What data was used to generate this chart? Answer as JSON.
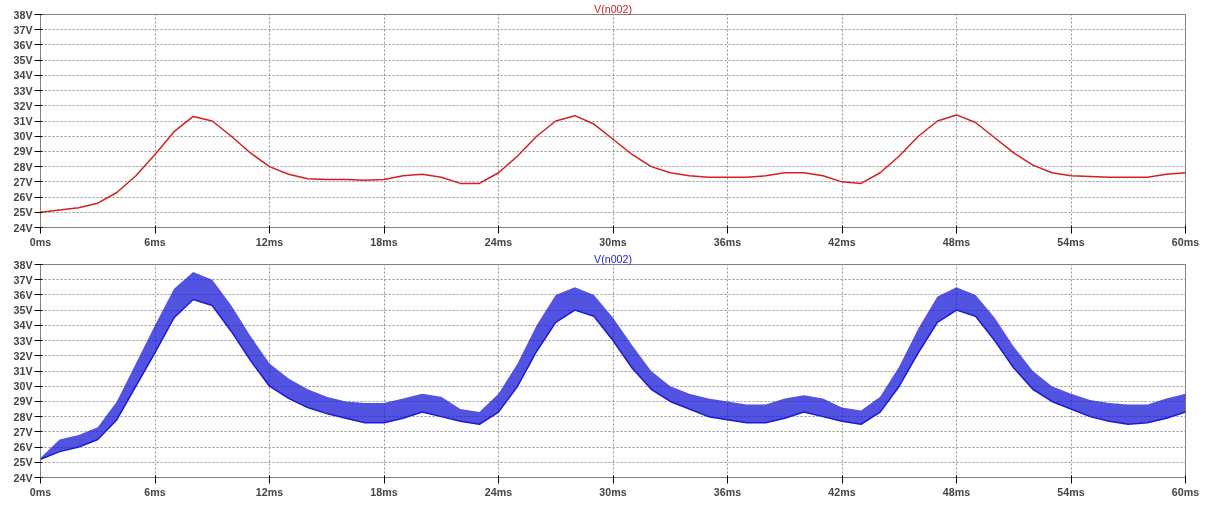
{
  "chart_data": [
    {
      "type": "line",
      "x": [
        0,
        1,
        2,
        3,
        4,
        5,
        6,
        7,
        8,
        9,
        10,
        11,
        12,
        13,
        14,
        15,
        16,
        17,
        18,
        19,
        20,
        21,
        22,
        23,
        24,
        25,
        26,
        27,
        28,
        29,
        30,
        31,
        32,
        33,
        34,
        35,
        36,
        37,
        38,
        39,
        40,
        41,
        42,
        43,
        44,
        45,
        46,
        47,
        48,
        49,
        50,
        51,
        52,
        53,
        54,
        55,
        56,
        57,
        58,
        59,
        60
      ],
      "series": [
        {
          "name": "V(n002)",
          "color": "#d42020",
          "values": [
            25.0,
            25.15,
            25.3,
            25.6,
            26.3,
            27.4,
            28.8,
            30.3,
            31.3,
            31.0,
            30.0,
            28.9,
            28.0,
            27.5,
            27.2,
            27.15,
            27.15,
            27.1,
            27.15,
            27.4,
            27.5,
            27.3,
            26.9,
            26.9,
            27.6,
            28.7,
            30.0,
            31.0,
            31.35,
            30.8,
            29.8,
            28.8,
            28.0,
            27.6,
            27.4,
            27.3,
            27.3,
            27.3,
            27.4,
            27.6,
            27.6,
            27.4,
            27.0,
            26.9,
            27.6,
            28.7,
            30.0,
            31.0,
            31.4,
            30.9,
            29.9,
            28.9,
            28.1,
            27.6,
            27.4,
            27.35,
            27.3,
            27.3,
            27.3,
            27.5,
            27.6
          ]
        }
      ],
      "xlim": [
        0,
        60
      ],
      "ylim": [
        24,
        38
      ],
      "xticks": [
        {
          "value": 0,
          "label": "0ms"
        },
        {
          "value": 6,
          "label": "6ms"
        },
        {
          "value": 12,
          "label": "12ms"
        },
        {
          "value": 18,
          "label": "18ms"
        },
        {
          "value": 24,
          "label": "24ms"
        },
        {
          "value": 30,
          "label": "30ms"
        },
        {
          "value": 36,
          "label": "36ms"
        },
        {
          "value": 42,
          "label": "42ms"
        },
        {
          "value": 48,
          "label": "48ms"
        },
        {
          "value": 54,
          "label": "54ms"
        },
        {
          "value": 60,
          "label": "60ms"
        }
      ],
      "yticks": [
        {
          "value": 24,
          "label": "24V"
        },
        {
          "value": 25,
          "label": "25V"
        },
        {
          "value": 26,
          "label": "26V"
        },
        {
          "value": 27,
          "label": "27V"
        },
        {
          "value": 28,
          "label": "28V"
        },
        {
          "value": 29,
          "label": "29V"
        },
        {
          "value": 30,
          "label": "30V"
        },
        {
          "value": 31,
          "label": "31V"
        },
        {
          "value": 32,
          "label": "32V"
        },
        {
          "value": 33,
          "label": "33V"
        },
        {
          "value": 34,
          "label": "34V"
        },
        {
          "value": 35,
          "label": "35V"
        },
        {
          "value": 36,
          "label": "36V"
        },
        {
          "value": 37,
          "label": "37V"
        },
        {
          "value": 38,
          "label": "38V"
        }
      ],
      "grid": true,
      "line_style": "solid"
    },
    {
      "type": "line",
      "x": [
        0,
        1,
        2,
        3,
        4,
        5,
        6,
        7,
        8,
        9,
        10,
        11,
        12,
        13,
        14,
        15,
        16,
        17,
        18,
        19,
        20,
        21,
        22,
        23,
        24,
        25,
        26,
        27,
        28,
        29,
        30,
        31,
        32,
        33,
        34,
        35,
        36,
        37,
        38,
        39,
        40,
        41,
        42,
        43,
        44,
        45,
        46,
        47,
        48,
        49,
        50,
        51,
        52,
        53,
        54,
        55,
        56,
        57,
        58,
        59,
        60
      ],
      "series": [
        {
          "name": "V(n002)",
          "color": "#1a1ad8",
          "values": [
            25.2,
            25.7,
            26.0,
            26.5,
            27.8,
            30.0,
            32.2,
            34.5,
            35.7,
            35.3,
            33.6,
            31.7,
            30.0,
            29.2,
            28.6,
            28.2,
            27.9,
            27.6,
            27.6,
            27.9,
            28.3,
            28.0,
            27.7,
            27.5,
            28.3,
            30.0,
            32.3,
            34.2,
            35.0,
            34.6,
            33.0,
            31.2,
            29.8,
            29.0,
            28.5,
            28.0,
            27.8,
            27.6,
            27.6,
            27.9,
            28.3,
            28.0,
            27.7,
            27.5,
            28.3,
            30.0,
            32.2,
            34.2,
            35.0,
            34.6,
            33.0,
            31.2,
            29.8,
            29.0,
            28.5,
            28.0,
            27.7,
            27.5,
            27.6,
            27.9,
            28.3
          ],
          "lower": [
            25.2,
            25.7,
            26.0,
            26.5,
            27.8,
            30.0,
            32.2,
            34.5,
            35.7,
            35.3,
            33.6,
            31.7,
            30.0,
            29.2,
            28.6,
            28.2,
            27.9,
            27.6,
            27.6,
            27.9,
            28.3,
            28.0,
            27.7,
            27.5,
            28.3,
            30.0,
            32.3,
            34.2,
            35.0,
            34.6,
            33.0,
            31.2,
            29.8,
            29.0,
            28.5,
            28.0,
            27.8,
            27.6,
            27.6,
            27.9,
            28.3,
            28.0,
            27.7,
            27.5,
            28.3,
            30.0,
            32.2,
            34.2,
            35.0,
            34.6,
            33.0,
            31.2,
            29.8,
            29.0,
            28.5,
            28.0,
            27.7,
            27.5,
            27.6,
            27.9,
            28.3
          ],
          "upper": [
            25.3,
            26.5,
            26.8,
            27.3,
            29.0,
            31.5,
            34.0,
            36.4,
            37.5,
            37.0,
            35.3,
            33.3,
            31.5,
            30.5,
            29.8,
            29.3,
            29.0,
            28.9,
            28.9,
            29.2,
            29.5,
            29.3,
            28.5,
            28.3,
            29.5,
            31.5,
            34.0,
            36.0,
            36.5,
            36.0,
            34.5,
            32.7,
            31.0,
            30.0,
            29.5,
            29.2,
            29.0,
            28.8,
            28.8,
            29.2,
            29.4,
            29.2,
            28.6,
            28.4,
            29.3,
            31.3,
            33.8,
            35.9,
            36.5,
            36.0,
            34.5,
            32.6,
            31.0,
            30.0,
            29.5,
            29.1,
            28.9,
            28.8,
            28.8,
            29.2,
            29.5
          ]
        }
      ],
      "xlim": [
        0,
        60
      ],
      "ylim": [
        24,
        38
      ],
      "xticks": [
        {
          "value": 0,
          "label": "0ms"
        },
        {
          "value": 6,
          "label": "6ms"
        },
        {
          "value": 12,
          "label": "12ms"
        },
        {
          "value": 18,
          "label": "18ms"
        },
        {
          "value": 24,
          "label": "24ms"
        },
        {
          "value": 30,
          "label": "30ms"
        },
        {
          "value": 36,
          "label": "36ms"
        },
        {
          "value": 42,
          "label": "42ms"
        },
        {
          "value": 48,
          "label": "48ms"
        },
        {
          "value": 54,
          "label": "54ms"
        },
        {
          "value": 60,
          "label": "60ms"
        }
      ],
      "yticks": [
        {
          "value": 24,
          "label": "24V"
        },
        {
          "value": 25,
          "label": "25V"
        },
        {
          "value": 26,
          "label": "26V"
        },
        {
          "value": 27,
          "label": "27V"
        },
        {
          "value": 28,
          "label": "28V"
        },
        {
          "value": 29,
          "label": "29V"
        },
        {
          "value": 30,
          "label": "30V"
        },
        {
          "value": 31,
          "label": "31V"
        },
        {
          "value": 32,
          "label": "32V"
        },
        {
          "value": 33,
          "label": "33V"
        },
        {
          "value": 34,
          "label": "34V"
        },
        {
          "value": 35,
          "label": "35V"
        },
        {
          "value": 36,
          "label": "36V"
        },
        {
          "value": 37,
          "label": "37V"
        },
        {
          "value": 38,
          "label": "38V"
        }
      ],
      "grid": true,
      "line_style": "solid"
    }
  ]
}
